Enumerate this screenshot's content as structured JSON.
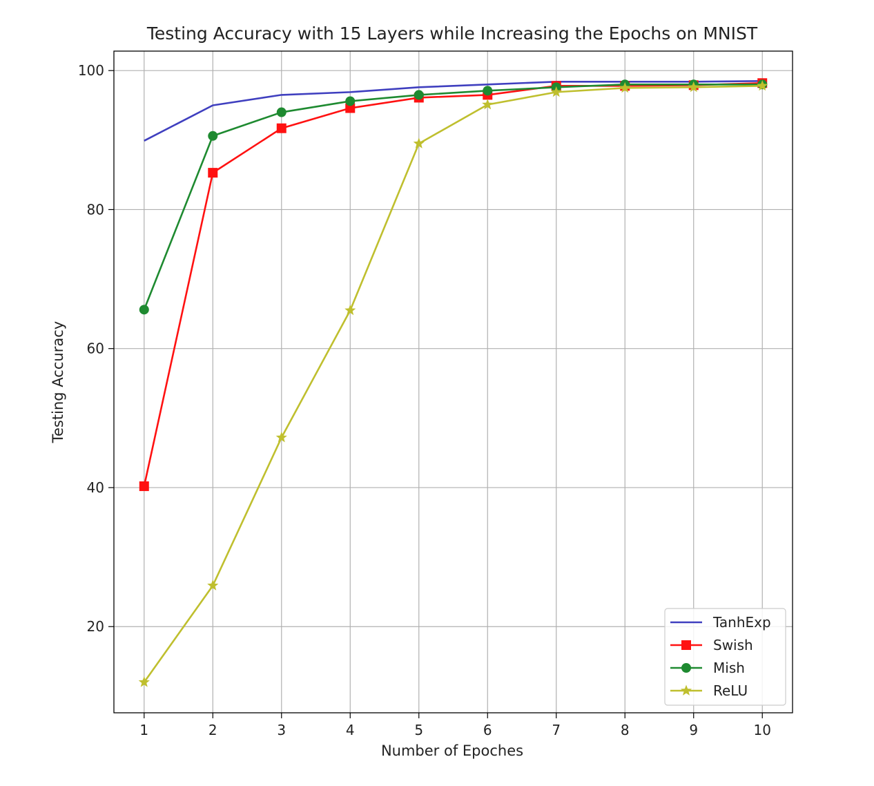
{
  "chart_data": {
    "type": "line",
    "title": "Testing Accuracy with 15 Layers while Increasing the Epochs on MNIST",
    "xlabel": "Number of Epoches",
    "ylabel": "Testing Accuracy",
    "x": [
      1,
      2,
      3,
      4,
      5,
      6,
      7,
      8,
      9,
      10
    ],
    "xlim": [
      0.56,
      10.44
    ],
    "ylim": [
      7.6,
      102.8
    ],
    "xticks": [
      1,
      2,
      3,
      4,
      5,
      6,
      7,
      8,
      9,
      10
    ],
    "yticks": [
      20,
      40,
      60,
      80,
      100
    ],
    "grid": true,
    "legend_position": "lower-right",
    "series": [
      {
        "name": "TanhExp",
        "color": "#3f3fbf",
        "marker": "none",
        "values": [
          89.9,
          95.0,
          96.5,
          96.9,
          97.6,
          98.0,
          98.4,
          98.4,
          98.4,
          98.5
        ]
      },
      {
        "name": "Swish",
        "color": "#ff1111",
        "marker": "square",
        "values": [
          40.2,
          85.3,
          91.7,
          94.6,
          96.1,
          96.5,
          97.8,
          97.8,
          97.9,
          98.2
        ]
      },
      {
        "name": "Mish",
        "color": "#1e8a30",
        "marker": "circle",
        "values": [
          65.6,
          90.6,
          94.0,
          95.6,
          96.5,
          97.1,
          97.6,
          98.0,
          98.0,
          98.0
        ]
      },
      {
        "name": "ReLU",
        "color": "#bfbf2e",
        "marker": "star",
        "values": [
          12.0,
          25.9,
          47.2,
          65.5,
          89.5,
          95.1,
          96.9,
          97.5,
          97.6,
          97.8
        ]
      }
    ]
  }
}
